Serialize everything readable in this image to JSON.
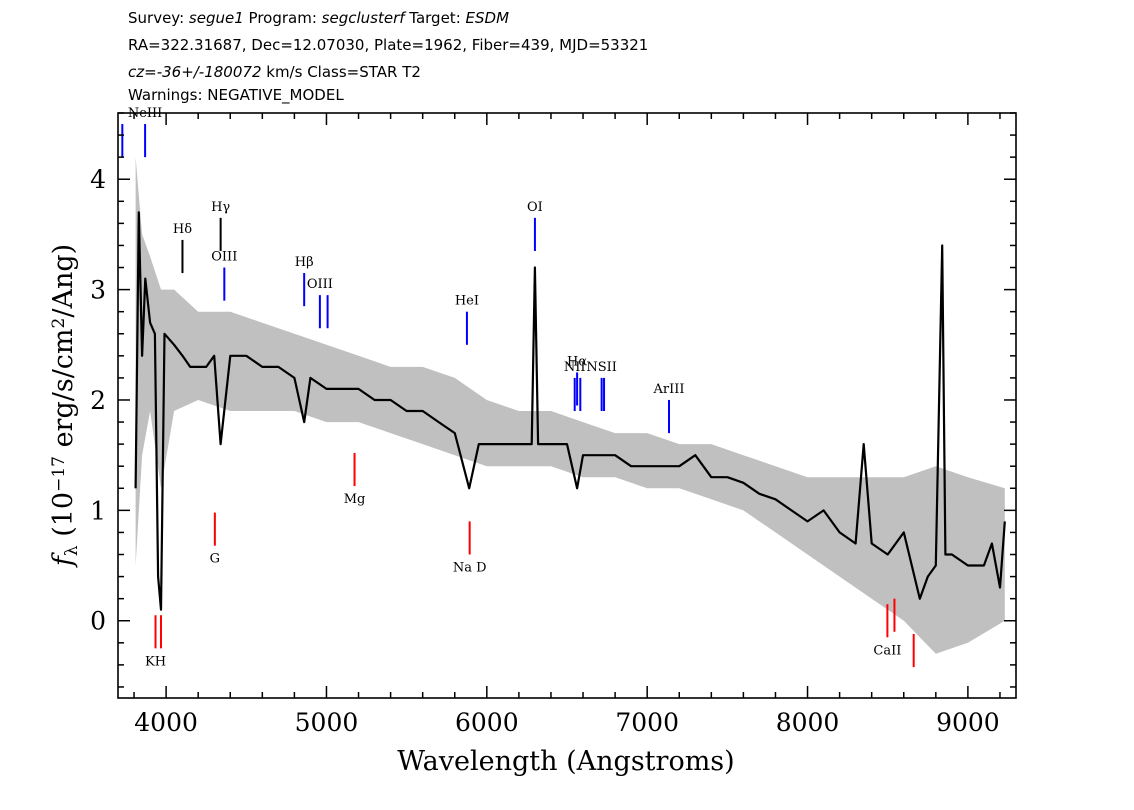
{
  "header": {
    "line1": [
      {
        "text": "Survey: ",
        "italic": false
      },
      {
        "text": "segue1",
        "italic": true
      },
      {
        "text": " Program: ",
        "italic": false
      },
      {
        "text": "segclusterf",
        "italic": true
      },
      {
        "text": " Target: ",
        "italic": false
      },
      {
        "text": "ESDM",
        "italic": true
      }
    ],
    "line2": "RA=322.31687, Dec=12.07030, Plate=1962, Fiber=439, MJD=53321",
    "line3": [
      {
        "text": "cz=-36+/-180072",
        "italic": true
      },
      {
        "text": " km/s Class=STAR T2",
        "italic": false
      }
    ],
    "line4": "Warnings: NEGATIVE_MODEL"
  },
  "chart_data": {
    "type": "line",
    "xlabel": "Wavelength (Angstroms)",
    "ylabel_parts": [
      "f",
      "λ",
      " (10",
      "−17",
      " erg/s/cm",
      "2",
      "/Ang)"
    ],
    "xlim": [
      3700,
      9300
    ],
    "ylim": [
      -0.7,
      4.6
    ],
    "x_ticks": [
      4000,
      5000,
      6000,
      7000,
      8000,
      9000
    ],
    "x_minor_step": 200,
    "y_ticks": [
      0,
      1,
      2,
      3,
      4
    ],
    "y_minor_step": 0.2,
    "grid": false,
    "series": [
      {
        "role": "flux",
        "color": "#000000",
        "x": [
          3810,
          3830,
          3850,
          3870,
          3900,
          3930,
          3950,
          3968,
          3990,
          4050,
          4102,
          4150,
          4250,
          4300,
          4340,
          4400,
          4500,
          4600,
          4700,
          4800,
          4861,
          4900,
          5000,
          5100,
          5200,
          5300,
          5400,
          5500,
          5600,
          5700,
          5800,
          5890,
          5950,
          6100,
          6200,
          6280,
          6300,
          6320,
          6400,
          6500,
          6563,
          6600,
          6700,
          6800,
          6900,
          7000,
          7100,
          7200,
          7300,
          7400,
          7500,
          7600,
          7700,
          7800,
          7900,
          8000,
          8100,
          8200,
          8300,
          8350,
          8400,
          8500,
          8600,
          8700,
          8750,
          8800,
          8840,
          8860,
          8900,
          9000,
          9100,
          9150,
          9200,
          9230
        ],
        "y": [
          1.2,
          3.7,
          2.4,
          3.1,
          2.7,
          2.6,
          0.4,
          0.1,
          2.6,
          2.5,
          2.4,
          2.3,
          2.3,
          2.4,
          1.6,
          2.4,
          2.4,
          2.3,
          2.3,
          2.2,
          1.8,
          2.2,
          2.1,
          2.1,
          2.1,
          2.0,
          2.0,
          1.9,
          1.9,
          1.8,
          1.7,
          1.2,
          1.6,
          1.6,
          1.6,
          1.6,
          3.2,
          1.6,
          1.6,
          1.6,
          1.2,
          1.5,
          1.5,
          1.5,
          1.4,
          1.4,
          1.4,
          1.4,
          1.5,
          1.3,
          1.3,
          1.25,
          1.15,
          1.1,
          1.0,
          0.9,
          1.0,
          0.8,
          0.7,
          1.6,
          0.7,
          0.6,
          0.8,
          0.2,
          0.4,
          0.5,
          3.4,
          0.6,
          0.6,
          0.5,
          0.5,
          0.7,
          0.3,
          0.9
        ]
      },
      {
        "role": "error",
        "color": "#c0c0c0",
        "x": [
          3810,
          3850,
          3900,
          3968,
          4050,
          4200,
          4400,
          4600,
          4800,
          5000,
          5200,
          5400,
          5600,
          5800,
          6000,
          6200,
          6400,
          6600,
          6800,
          7000,
          7200,
          7400,
          7600,
          7800,
          8000,
          8200,
          8400,
          8600,
          8800,
          9000,
          9230
        ],
        "y_low": [
          0.5,
          1.5,
          1.9,
          1.2,
          1.9,
          2.0,
          1.9,
          1.9,
          1.9,
          1.8,
          1.8,
          1.7,
          1.6,
          1.5,
          1.4,
          1.4,
          1.4,
          1.3,
          1.3,
          1.2,
          1.2,
          1.1,
          1.0,
          0.8,
          0.6,
          0.4,
          0.2,
          0.0,
          -0.3,
          -0.2,
          0.0
        ],
        "y_high": [
          4.2,
          3.5,
          3.3,
          3.0,
          3.0,
          2.8,
          2.8,
          2.7,
          2.6,
          2.5,
          2.4,
          2.3,
          2.3,
          2.2,
          2.0,
          1.9,
          1.9,
          1.8,
          1.7,
          1.7,
          1.6,
          1.6,
          1.5,
          1.4,
          1.3,
          1.3,
          1.3,
          1.3,
          1.4,
          1.3,
          1.2
        ]
      }
    ],
    "annotations": [
      {
        "label": "",
        "kind": "emission",
        "x": 3727,
        "y_from": 4.5,
        "y_to": 4.2
      },
      {
        "label": "NeIII",
        "kind": "emission",
        "x": 3869,
        "y_from": 4.5,
        "y_to": 4.2
      },
      {
        "label": "Hδ",
        "kind": "balmer",
        "x": 4102,
        "y_from": 3.45,
        "y_to": 3.15
      },
      {
        "label": "Hγ",
        "kind": "balmer",
        "x": 4340,
        "y_from": 3.65,
        "y_to": 3.35
      },
      {
        "label": "OIII",
        "kind": "emission",
        "x": 4363,
        "y_from": 3.2,
        "y_to": 2.9
      },
      {
        "label": "Hβ",
        "kind": "emission",
        "x": 4861,
        "y_from": 3.15,
        "y_to": 2.85
      },
      {
        "label": "OIII",
        "kind": "emission",
        "x": 4959,
        "y_from": 2.95,
        "y_to": 2.65
      },
      {
        "label": "",
        "kind": "emission",
        "x": 5007,
        "y_from": 2.95,
        "y_to": 2.65
      },
      {
        "label": "HeI",
        "kind": "emission",
        "x": 5876,
        "y_from": 2.8,
        "y_to": 2.5
      },
      {
        "label": "OI",
        "kind": "emission",
        "x": 6300,
        "y_from": 3.65,
        "y_to": 3.35
      },
      {
        "label": "NII",
        "kind": "emission",
        "x": 6548,
        "y_from": 2.2,
        "y_to": 1.9
      },
      {
        "label": "Hα",
        "kind": "emission",
        "x": 6563,
        "y_from": 2.25,
        "y_to": 1.95
      },
      {
        "label": "",
        "kind": "emission",
        "x": 6583,
        "y_from": 2.2,
        "y_to": 1.9
      },
      {
        "label": "NSII",
        "kind": "emission",
        "x": 6716,
        "y_from": 2.2,
        "y_to": 1.9
      },
      {
        "label": "",
        "kind": "emission",
        "x": 6731,
        "y_from": 2.2,
        "y_to": 1.9
      },
      {
        "label": "ArIII",
        "kind": "emission",
        "x": 7136,
        "y_from": 2.0,
        "y_to": 1.7
      },
      {
        "label": "KH",
        "kind": "absorption",
        "x": 3934,
        "y_from": -0.25,
        "y_to": 0.05
      },
      {
        "label": "",
        "kind": "absorption",
        "x": 3968,
        "y_from": -0.25,
        "y_to": 0.05
      },
      {
        "label": "G",
        "kind": "absorption",
        "x": 4304,
        "y_from": 0.68,
        "y_to": 0.98
      },
      {
        "label": "Mg",
        "kind": "absorption",
        "x": 5175,
        "y_from": 1.22,
        "y_to": 1.52
      },
      {
        "label": "Na D",
        "kind": "absorption",
        "x": 5893,
        "y_from": 0.6,
        "y_to": 0.9
      },
      {
        "label": "CaII",
        "kind": "absorption",
        "x": 8498,
        "y_from": -0.15,
        "y_to": 0.15
      },
      {
        "label": "",
        "kind": "absorption",
        "x": 8542,
        "y_from": -0.1,
        "y_to": 0.2
      },
      {
        "label": "",
        "kind": "absorption",
        "x": 8662,
        "y_from": -0.42,
        "y_to": -0.12
      }
    ],
    "colors": {
      "emission": "#0000ff",
      "balmer": "#000000",
      "absorption": "#ff0000",
      "flux": "#000000",
      "error": "#c0c0c0",
      "axes": "#000000"
    }
  }
}
